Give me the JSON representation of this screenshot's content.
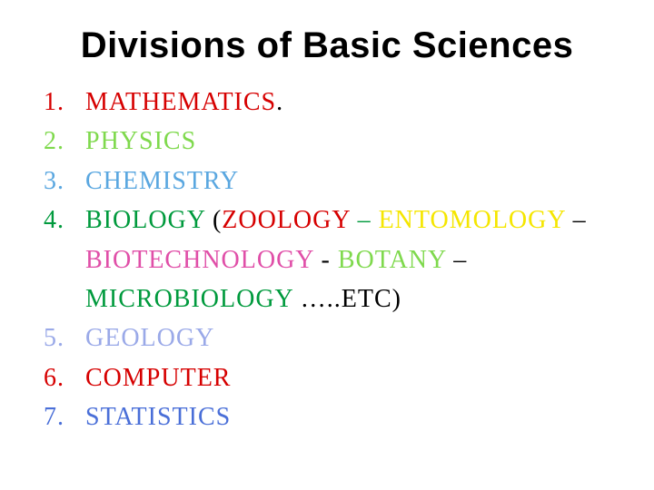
{
  "title": "Divisions of Basic Sciences",
  "colors": {
    "red": "#d60000",
    "lightGreen": "#7fd94d",
    "skyBlue": "#5aa7e0",
    "green": "#009a3d",
    "yellow": "#f5e600",
    "magenta": "#e04fa8",
    "black": "#000000",
    "periwinkle": "#9aa9e8",
    "blue": "#4a6fd8",
    "titleBlack": "#000000"
  },
  "fonts": {
    "titleSize": 40,
    "listSize": 28,
    "listLetterSpacing": 1
  },
  "items": {
    "n1": "1.",
    "n2": "2.",
    "n3": "3.",
    "n4": "4.",
    "n5": "5.",
    "n6": "6.",
    "n7": "7.",
    "mathematics": "Mathematics",
    "mathSuffix": ".",
    "physics": "Physics",
    "chemistry": "Chemistry",
    "biology": "Biology",
    "paren1": " (",
    "zoology": "zoology",
    "dash1": " – ",
    "entomology": "entomology",
    "dash2": " – ",
    "biotechnology": "biotechnology",
    "dash3": " - ",
    "botany": "Botany",
    "dash4": " – ",
    "microbiology": "microbiology",
    "etc": " …..etc)",
    "geology": "Geology",
    "computer": "Computer",
    "statistics": "statistics"
  }
}
